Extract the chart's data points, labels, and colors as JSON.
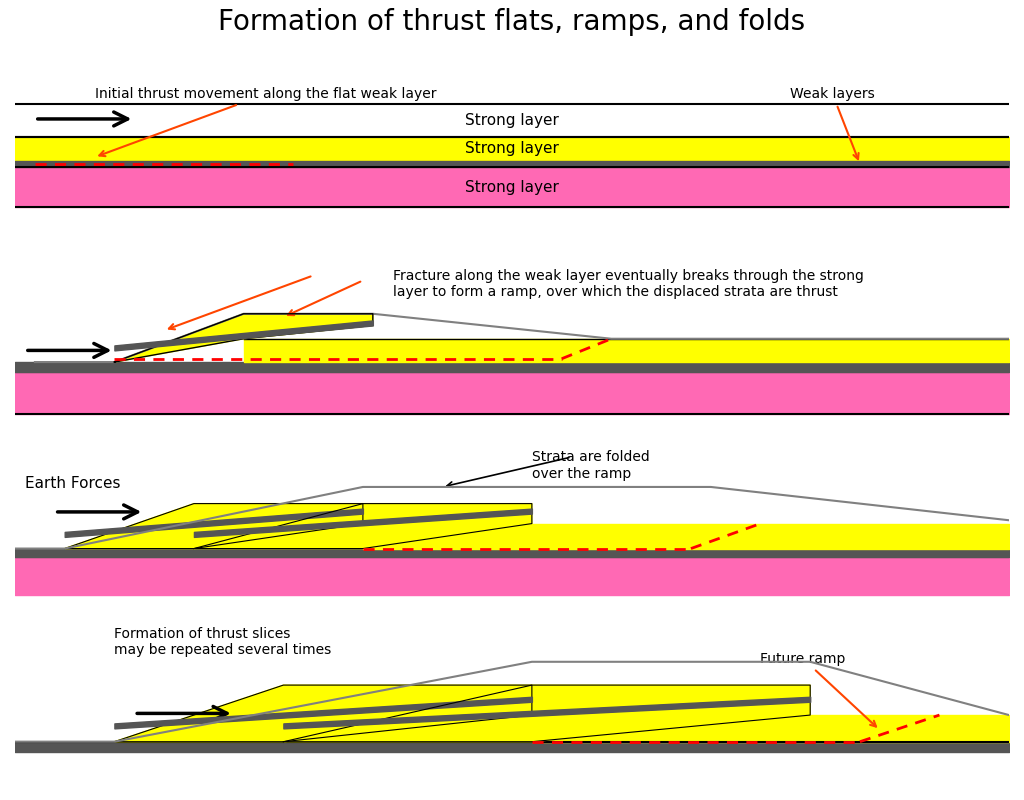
{
  "title": "Formation of thrust flats, ramps, and folds",
  "title_fontsize": 20,
  "background_color": "#ffffff",
  "yellow": "#ffff00",
  "pink": "#ff69b4",
  "gray": "#808080",
  "dark_gray": "#555555",
  "red": "#ff0000",
  "orange_red": "#ff4500",
  "black": "#000000",
  "panel1": {
    "label1": "Initial thrust movement along the flat weak layer",
    "label2": "Weak layers",
    "label3": "Strong layer",
    "label4": "Strong layer",
    "label5": "Strong layer"
  },
  "panel2": {
    "label1": "Fracture along the weak layer eventually breaks through the strong\nlayer to form a ramp, over which the displaced strata are thrust"
  },
  "panel3": {
    "label1": "Strata are folded\nover the ramp",
    "label2": "Earth Forces"
  },
  "panel4": {
    "label1": "Formation of thrust slices\nmay be repeated several times",
    "label2": "Future ramp"
  }
}
